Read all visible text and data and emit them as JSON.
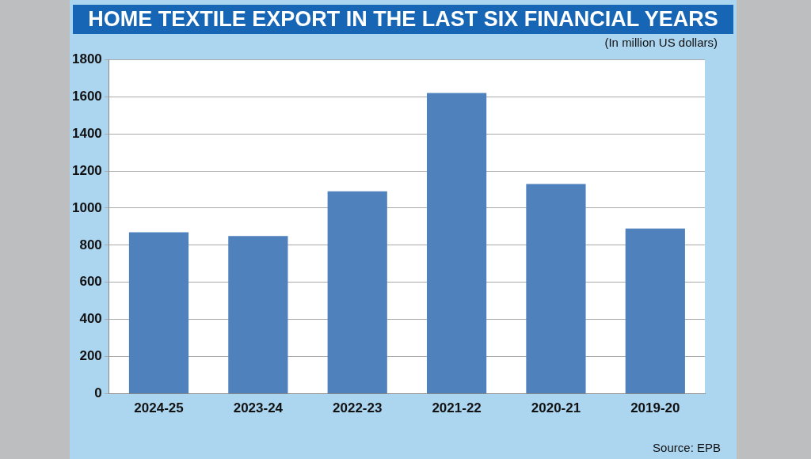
{
  "chart_data": {
    "type": "bar",
    "title": "HOME TEXTILE EXPORT IN THE LAST SIX FINANCIAL YEARS",
    "subtitle": "(In million US dollars)",
    "categories": [
      "2024-25",
      "2023-24",
      "2022-23",
      "2021-22",
      "2020-21",
      "2019-20"
    ],
    "values": [
      870,
      850,
      1090,
      1620,
      1130,
      890
    ],
    "color": "#4f81bd",
    "ylim": [
      0,
      1800
    ],
    "yticks": [
      0,
      200,
      400,
      600,
      800,
      1000,
      1200,
      1400,
      1600,
      1800
    ],
    "grid": "y",
    "legend": false,
    "annotations": [
      "Source: EPB"
    ]
  }
}
